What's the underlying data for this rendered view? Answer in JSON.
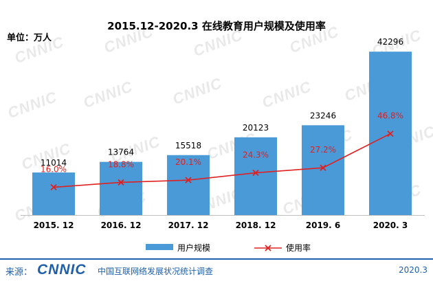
{
  "watermark": "CNNIC",
  "chart_data": {
    "type": "bar",
    "title": "2015.12-2020.3 在线教育用户规模及使用率",
    "unit_label": "单位：万人",
    "categories": [
      "2015. 12",
      "2016. 12",
      "2017. 12",
      "2018. 12",
      "2019. 6",
      "2020. 3"
    ],
    "series": [
      {
        "name": "用户规模",
        "type": "bar",
        "color": "#4a9ad8",
        "values": [
          11014,
          13764,
          15518,
          20123,
          23246,
          42296
        ]
      },
      {
        "name": "使用率",
        "type": "line",
        "color": "#e02020",
        "values": [
          16.0,
          18.8,
          20.1,
          24.3,
          27.2,
          46.8
        ],
        "labels": [
          "16.0%",
          "18.8%",
          "20.1%",
          "24.3%",
          "27.2%",
          "46.8%"
        ]
      }
    ],
    "bar_ylim": [
      0,
      45000
    ],
    "line_ylim": [
      0,
      100
    ],
    "legend_position": "bottom",
    "grid": false
  },
  "footer": {
    "source_label": "来源：",
    "logo_text": "CNNIC",
    "org": "中国互联网络发展状况统计调查",
    "date": "2020.3"
  }
}
